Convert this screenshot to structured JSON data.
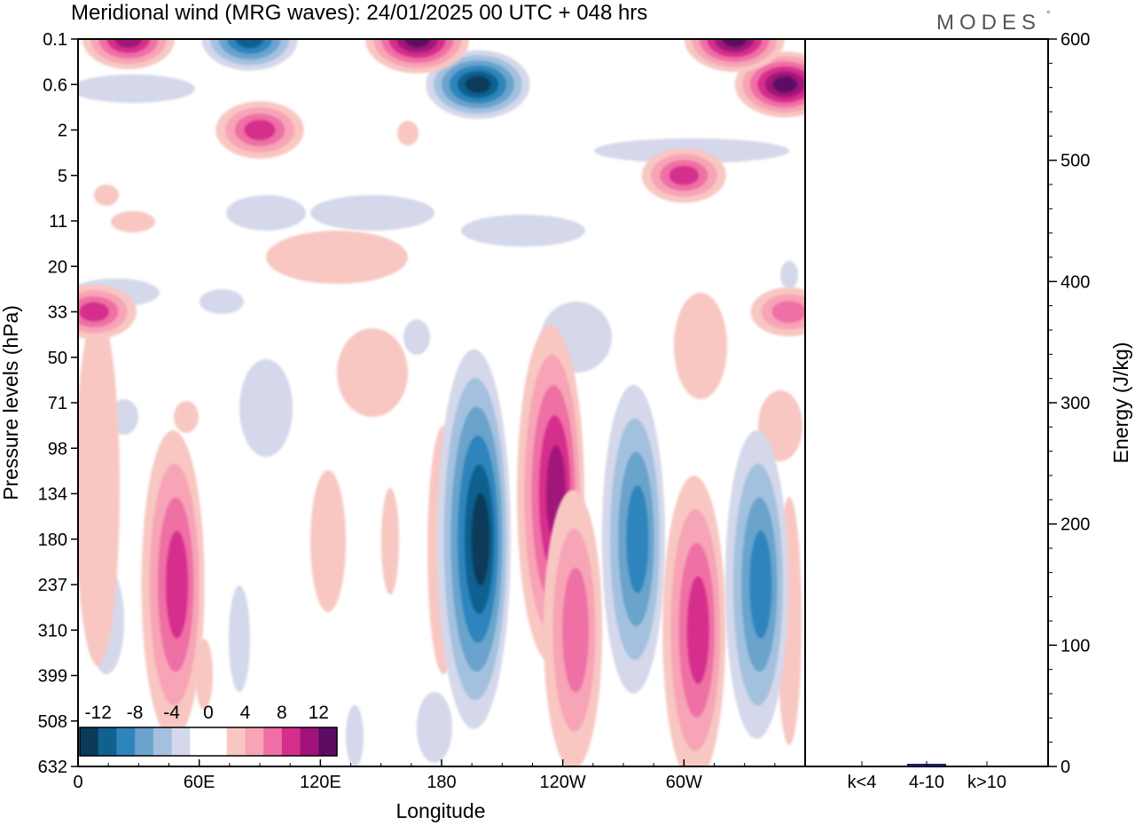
{
  "header": {
    "title": "Meridional wind (MRG waves):  24/01/2025  00 UTC  + 048 hrs",
    "brand": "MODES",
    "brand_mark": "°"
  },
  "colors": {
    "negative": [
      "#0b3a5a",
      "#11618f",
      "#2e84bd",
      "#6ba3cc",
      "#a3c1df",
      "#d4d8ea"
    ],
    "zero": "#ffffff",
    "positive": [
      "#f8c7c2",
      "#f7a4b6",
      "#ef6fa4",
      "#d52e8c",
      "#a1127a",
      "#5c0d63"
    ],
    "energy_bar": "#1a1a66"
  },
  "chart_data": [
    {
      "type": "heatmap",
      "title": "Meridional wind (MRG waves):  24/01/2025  00 UTC  + 048 hrs",
      "xlabel": "Longitude",
      "ylabel": "Pressure levels (hPa)",
      "x_ticks": [
        "0",
        "60E",
        "120E",
        "180",
        "120W",
        "60W"
      ],
      "x_tick_degrees": [
        0,
        60,
        120,
        180,
        240,
        300
      ],
      "xlim": [
        0,
        360
      ],
      "y_ticks": [
        "0.1",
        "0.6",
        "2",
        "5",
        "11",
        "20",
        "33",
        "50",
        "71",
        "98",
        "134",
        "180",
        "237",
        "310",
        "399",
        "508",
        "632"
      ],
      "colorbar": {
        "labels": [
          "-12",
          "-8",
          "-4",
          "0",
          "4",
          "8",
          "12"
        ],
        "levels": [
          -12,
          -10,
          -8,
          -6,
          -4,
          -2,
          2,
          4,
          6,
          8,
          10,
          12
        ]
      },
      "features": [
        {
          "lon": 196,
          "level": "180",
          "value": -13
        },
        {
          "lon": 198,
          "level": "0.6",
          "value": -13
        },
        {
          "lon": 234,
          "level": "134",
          "value": 10
        },
        {
          "lon": 275,
          "level": "180",
          "value": -8
        },
        {
          "lon": 336,
          "level": "237",
          "value": -8
        },
        {
          "lon": 47,
          "level": "237",
          "value": 8
        },
        {
          "lon": 168,
          "level": "0.1",
          "value": 13
        },
        {
          "lon": 85,
          "level": "0.1",
          "value": -11
        },
        {
          "lon": 25,
          "level": "0.1",
          "value": 10
        },
        {
          "lon": 305,
          "level": "310",
          "value": 8
        },
        {
          "lon": 350,
          "level": "0.6",
          "value": 12
        },
        {
          "lon": 325,
          "level": "0.1",
          "value": 12
        },
        {
          "lon": 90,
          "level": "2",
          "value": 9
        },
        {
          "lon": 300,
          "level": "5",
          "value": 8
        },
        {
          "lon": 8,
          "level": "33",
          "value": 8
        },
        {
          "lon": 352,
          "level": "33",
          "value": 6
        },
        {
          "lon": 245,
          "level": "310",
          "value": 6
        }
      ]
    },
    {
      "type": "bar",
      "ylabel": "Energy (J/kg)",
      "categories": [
        "k<4",
        "4-10",
        "k>10"
      ],
      "values": [
        0.3,
        2.2,
        0.2
      ],
      "ylim": [
        0,
        600
      ],
      "y_ticks": [
        "0",
        "100",
        "200",
        "300",
        "400",
        "500",
        "600"
      ]
    }
  ]
}
